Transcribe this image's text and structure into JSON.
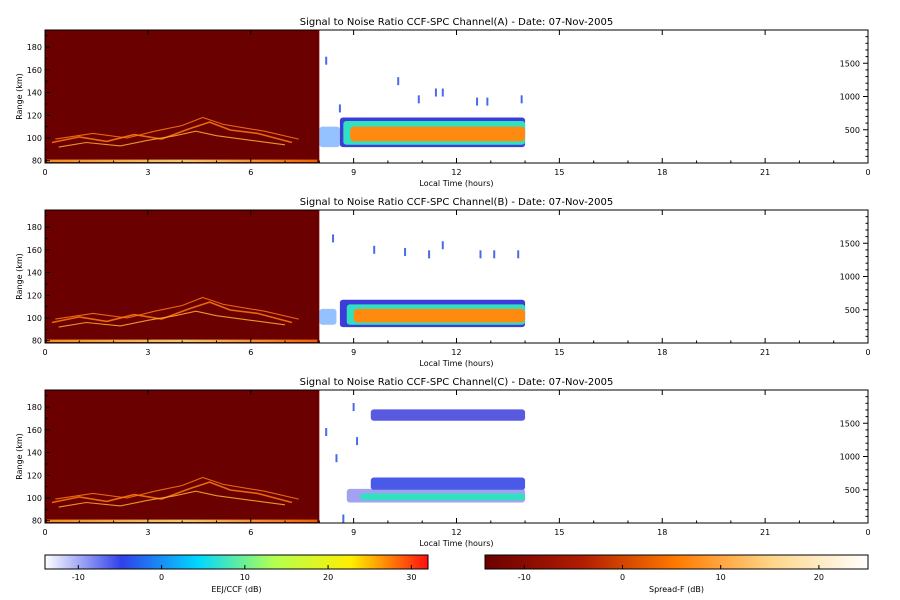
{
  "chart_data": {
    "type": "heatmap",
    "x_axis": {
      "label": "Local Time (hours)",
      "range": [
        0,
        24
      ],
      "ticks": [
        "0",
        "3",
        "6",
        "9",
        "12",
        "15",
        "18",
        "21",
        "0"
      ]
    },
    "y_axis_left": {
      "label": "Range (km)",
      "range": [
        78,
        195
      ],
      "ticks": [
        80,
        100,
        120,
        140,
        160,
        180
      ]
    },
    "y_axis_right": {
      "range": [
        0,
        2000
      ],
      "ticks": [
        500,
        1000,
        1500
      ]
    },
    "panels": [
      {
        "title": "Signal to Noise Ratio CCF-SPC Channel(A) - Date: 07-Nov-2005",
        "spread_f_block": {
          "x": [
            0,
            8
          ],
          "y": [
            78,
            195
          ]
        },
        "eej_ccf": [
          {
            "level": "weak",
            "x": [
              8.0,
              8.6
            ],
            "y": [
              92,
              110
            ]
          },
          {
            "level": "edge",
            "x": [
              8.6,
              14.0
            ],
            "y": [
              92,
              118
            ]
          },
          {
            "level": "mid",
            "x": [
              8.7,
              14.0
            ],
            "y": [
              94,
              115
            ]
          },
          {
            "level": "core",
            "x": [
              8.9,
              14.0
            ],
            "y": [
              97,
              110
            ]
          }
        ],
        "sparse_echoes": [
          {
            "x": 8.2,
            "y": 168
          },
          {
            "x": 10.3,
            "y": 150
          },
          {
            "x": 10.9,
            "y": 134
          },
          {
            "x": 11.4,
            "y": 140
          },
          {
            "x": 11.6,
            "y": 140
          },
          {
            "x": 12.6,
            "y": 132
          },
          {
            "x": 12.9,
            "y": 132
          },
          {
            "x": 13.9,
            "y": 134
          },
          {
            "x": 8.6,
            "y": 126
          }
        ]
      },
      {
        "title": "Signal to Noise Ratio CCF-SPC Channel(B) - Date: 07-Nov-2005",
        "spread_f_block": {
          "x": [
            0,
            8
          ],
          "y": [
            78,
            195
          ]
        },
        "eej_ccf": [
          {
            "level": "weak",
            "x": [
              8.0,
              8.5
            ],
            "y": [
              94,
              108
            ]
          },
          {
            "level": "edge",
            "x": [
              8.6,
              14.0
            ],
            "y": [
              92,
              116
            ]
          },
          {
            "level": "mid",
            "x": [
              8.8,
              14.0
            ],
            "y": [
              94,
              112
            ]
          },
          {
            "level": "core",
            "x": [
              9.0,
              14.0
            ],
            "y": [
              96,
              108
            ]
          }
        ],
        "sparse_echoes": [
          {
            "x": 9.6,
            "y": 160
          },
          {
            "x": 10.5,
            "y": 158
          },
          {
            "x": 11.2,
            "y": 156
          },
          {
            "x": 11.6,
            "y": 164
          },
          {
            "x": 12.7,
            "y": 156
          },
          {
            "x": 13.1,
            "y": 156
          },
          {
            "x": 13.8,
            "y": 156
          },
          {
            "x": 8.4,
            "y": 170
          }
        ]
      },
      {
        "title": "Signal to Noise Ratio CCF-SPC Channel(C) - Date: 07-Nov-2005",
        "spread_f_block": {
          "x": [
            0,
            8
          ],
          "y": [
            78,
            195
          ]
        },
        "eej_ccf": [
          {
            "level": "upper-band",
            "x": [
              9.5,
              14.0
            ],
            "y": [
              168,
              178
            ]
          },
          {
            "level": "lower-band",
            "x": [
              9.5,
              14.0
            ],
            "y": [
              107,
              118
            ]
          },
          {
            "level": "weak-mid",
            "x": [
              8.8,
              14.0
            ],
            "y": [
              96,
              108
            ]
          },
          {
            "level": "mid",
            "x": [
              9.2,
              14.0
            ],
            "y": [
              98,
              104
            ]
          }
        ],
        "sparse_echoes": [
          {
            "x": 8.2,
            "y": 158
          },
          {
            "x": 9.1,
            "y": 150
          },
          {
            "x": 8.7,
            "y": 82
          },
          {
            "x": 9.0,
            "y": 180
          },
          {
            "x": 8.5,
            "y": 135
          }
        ]
      }
    ],
    "colorbars": [
      {
        "label": "EEJ/CCF (dB)",
        "range": [
          -14,
          32
        ],
        "ticks": [
          -10,
          0,
          10,
          20,
          30
        ],
        "colormap": [
          "#ffffff",
          "#3040e8",
          "#00d8ff",
          "#b4ff50",
          "#ffee00",
          "#ff1010"
        ]
      },
      {
        "label": "Spread-F (dB)",
        "range": [
          -14,
          25
        ],
        "ticks": [
          -10,
          0,
          10,
          20
        ],
        "colormap": [
          "#6b0000",
          "#b01c00",
          "#ff7a00",
          "#ffd68a",
          "#ffffff"
        ]
      }
    ],
    "colors": {
      "spread_f_background": "#6b0000",
      "weak": "#5aa0ff",
      "edge": "#3c3cd8",
      "mid": "#30e0c0",
      "core": "#ff8a10",
      "upper-band": "#5a5ae0",
      "lower-band": "#4a5ae8",
      "weak-mid": "#7070e8",
      "sparse": "#4a6ae8"
    },
    "grid": false,
    "legend": "colorbars-bottom"
  }
}
